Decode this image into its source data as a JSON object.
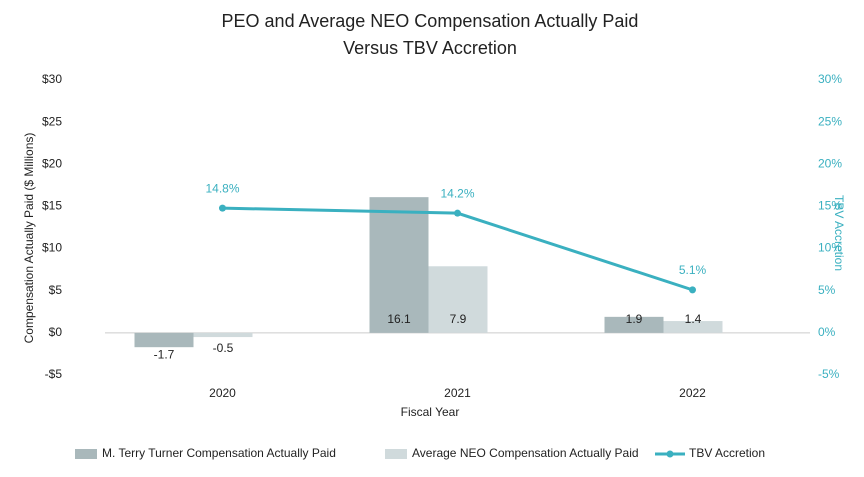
{
  "chart_data": {
    "type": "bar-line",
    "title": [
      "PEO and Average NEO Compensation Actually Paid",
      "Versus TBV Accretion"
    ],
    "ylabel": "Compensation Actually Paid ($ Millions)",
    "y2label": "TBV Accretion",
    "xlabel": "Fiscal Year",
    "categories": [
      "2020",
      "2021",
      "2022"
    ],
    "ylim": [
      -5,
      30
    ],
    "yticks": [
      {
        "value": 30,
        "label": "$30"
      },
      {
        "value": 25,
        "label": "$25"
      },
      {
        "value": 20,
        "label": "$20"
      },
      {
        "value": 15,
        "label": "$15"
      },
      {
        "value": 10,
        "label": "$10"
      },
      {
        "value": 5,
        "label": "$5"
      },
      {
        "value": 0,
        "label": "$0"
      },
      {
        "value": -5,
        "label": "-$5"
      }
    ],
    "y2lim": [
      -5,
      30
    ],
    "y2ticks": [
      {
        "value": 30,
        "label": "30%"
      },
      {
        "value": 25,
        "label": "25%"
      },
      {
        "value": 20,
        "label": "20%"
      },
      {
        "value": 15,
        "label": "15%"
      },
      {
        "value": 10,
        "label": "10%"
      },
      {
        "value": 5,
        "label": "5%"
      },
      {
        "value": 0,
        "label": "0%"
      },
      {
        "value": -5,
        "label": "-5%"
      }
    ],
    "series": [
      {
        "name": "M. Terry Turner Compensation Actually Paid",
        "type": "bar",
        "color": "#a9b8bb",
        "values": [
          -1.7,
          16.1,
          1.9
        ]
      },
      {
        "name": "Average NEO Compensation Actually Paid",
        "type": "bar",
        "color": "#d0dadc",
        "values": [
          -0.5,
          7.9,
          1.4
        ]
      },
      {
        "name": "TBV Accretion",
        "type": "line",
        "axis": "y2",
        "color": "#3ab0c0",
        "values": [
          14.8,
          14.2,
          5.1
        ],
        "value_labels": [
          "14.8%",
          "14.2%",
          "5.1%"
        ]
      }
    ]
  }
}
